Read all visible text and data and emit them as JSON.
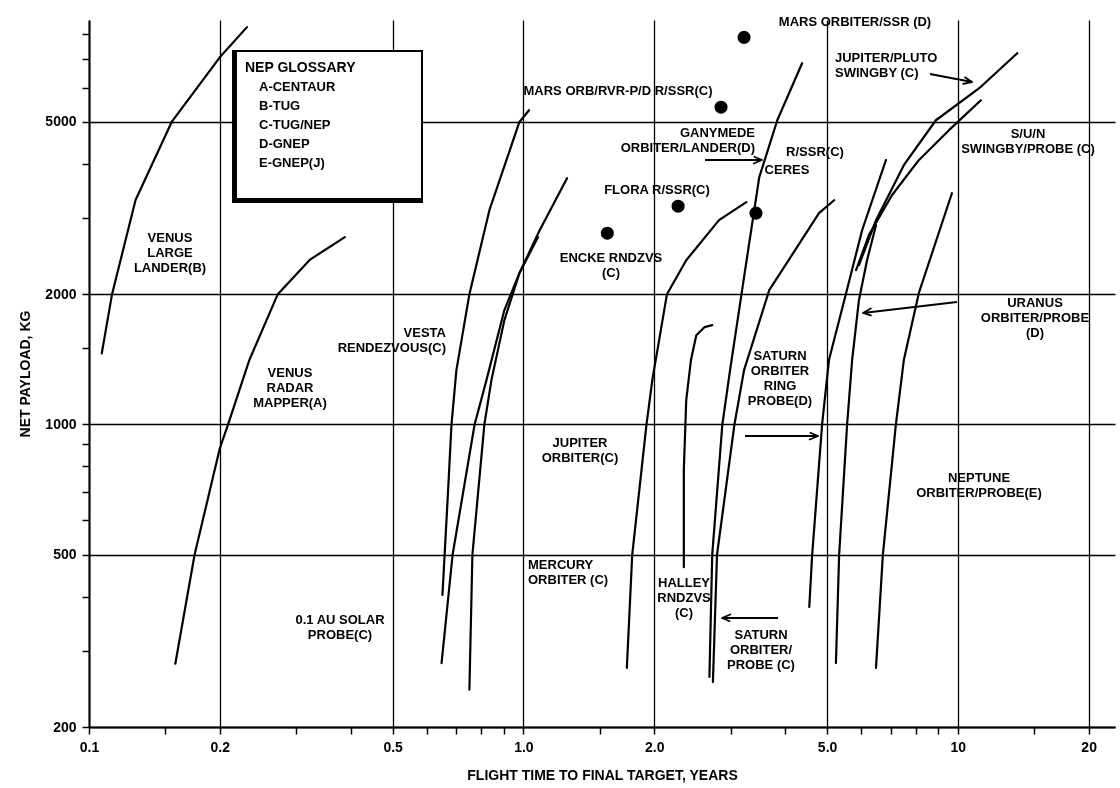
{
  "chart_data": {
    "type": "line",
    "xlabel": "FLIGHT TIME TO FINAL TARGET, YEARS",
    "ylabel": "NET PAYLOAD, KG",
    "log": "xy",
    "xlim": [
      0.1,
      23
    ],
    "ylim": [
      200,
      8600
    ],
    "xticks": [
      0.1,
      {
        "value": 0.15,
        "label": null
      },
      0.2,
      {
        "value": 0.3,
        "label": null
      },
      {
        "value": 0.4,
        "label": null
      },
      0.5,
      {
        "value": 0.6,
        "label": null
      },
      {
        "value": 0.7,
        "label": null
      },
      {
        "value": 0.8,
        "label": null
      },
      {
        "value": 0.9,
        "label": null
      },
      {
        "value": 1,
        "label": "1.0"
      },
      {
        "value": 1.5,
        "label": null
      },
      {
        "value": 2,
        "label": "2.0"
      },
      {
        "value": 3,
        "label": null
      },
      {
        "value": 4,
        "label": null
      },
      {
        "value": 5,
        "label": "5.0"
      },
      {
        "value": 6,
        "label": null
      },
      {
        "value": 7,
        "label": null
      },
      {
        "value": 8,
        "label": null
      },
      {
        "value": 9,
        "label": null
      },
      10,
      {
        "value": 15,
        "label": null
      },
      20
    ],
    "yticks": [
      200,
      {
        "value": 300,
        "label": null
      },
      {
        "value": 400,
        "label": null
      },
      500,
      {
        "value": 600,
        "label": null
      },
      {
        "value": 700,
        "label": null
      },
      {
        "value": 800,
        "label": null
      },
      {
        "value": 900,
        "label": null
      },
      1000,
      {
        "value": 1500,
        "label": null
      },
      2000,
      {
        "value": 3000,
        "label": null
      },
      {
        "value": 4000,
        "label": null
      },
      5000,
      {
        "value": 6000,
        "label": null
      },
      {
        "value": 7000,
        "label": null
      },
      {
        "value": 8000,
        "label": null
      }
    ],
    "grid": true,
    "series": [
      {
        "color": "#000000",
        "x": [
          0.107,
          0.113,
          0.128,
          0.155,
          0.2,
          0.231
        ],
        "values": [
          1460,
          2000,
          3300,
          5000,
          7050,
          8280
        ]
      },
      {
        "color": "#000000",
        "x": [
          0.158,
          0.175,
          0.2,
          0.209,
          0.234,
          0.272,
          0.322,
          0.388
        ],
        "values": [
          280,
          500,
          880,
          1000,
          1410,
          2000,
          2400,
          2710
        ]
      },
      {
        "color": "#000000",
        "x": [
          0.651,
          0.669,
          0.683,
          0.701,
          0.751,
          0.835,
          0.979,
          1.03
        ],
        "values": [
          404,
          669,
          1000,
          1335,
          2000,
          3126,
          5000,
          5322
        ]
      },
      {
        "color": "#000000",
        "x": [
          0.648,
          0.687,
          0.772,
          0.822,
          0.904,
          0.979,
          1.08
        ],
        "values": [
          281,
          500,
          1000,
          1266,
          1838,
          2237,
          2708
        ]
      },
      {
        "color": "#000000",
        "x": [
          0.751,
          0.763,
          0.813,
          0.844,
          0.904,
          0.979,
          1.09,
          1.26
        ],
        "values": [
          244,
          500,
          1000,
          1266,
          1742,
          2237,
          2810,
          3706
        ]
      },
      {
        "color": "#000000",
        "x": [
          1.73,
          1.78,
          1.92,
          1.98,
          2.14,
          2.37,
          2.82,
          3.26
        ],
        "values": [
          274,
          500,
          1000,
          1266,
          2000,
          2396,
          2965,
          3264
        ]
      },
      {
        "color": "#000000",
        "x": [
          2.34,
          2.34,
          2.37,
          2.43,
          2.5,
          2.61,
          2.72
        ],
        "values": [
          468,
          785,
          1138,
          1409,
          1608,
          1678,
          1696
        ]
      },
      {
        "color": "#000000",
        "x": [
          2.68,
          2.72,
          2.87,
          2.99,
          3.22,
          3.49,
          3.84,
          4.38
        ],
        "values": [
          261,
          500,
          1000,
          1335,
          2190,
          3726,
          5045,
          6832
        ]
      },
      {
        "color": "#000000",
        "x": [
          2.73,
          2.79,
          3.06,
          3.22,
          3.68,
          4.79,
          5.19
        ],
        "values": [
          254,
          500,
          1000,
          1335,
          2043,
          3078,
          3296
        ]
      },
      {
        "color": "#000000",
        "x": [
          4.55,
          4.62,
          4.87,
          5.05,
          5.53,
          6.02,
          6.83
        ],
        "values": [
          379,
          500,
          1000,
          1409,
          2011,
          2810,
          4080
        ]
      },
      {
        "color": "#000000",
        "x": [
          5.24,
          5.33,
          5.56,
          5.71,
          5.92,
          6.18,
          6.48
        ],
        "values": [
          281,
          500,
          1000,
          1409,
          1938,
          2396,
          2886
        ]
      },
      {
        "color": "#000000",
        "x": [
          5.92,
          6.48,
          7.51,
          8.9,
          11.2,
          13.7
        ],
        "values": [
          2334,
          2965,
          3972,
          5045,
          5983,
          7206
        ]
      },
      {
        "color": "#000000",
        "x": [
          5.83,
          6.24,
          7.05,
          8.13,
          9.54,
          11.3
        ],
        "values": [
          2272,
          2738,
          3386,
          4080,
          4786,
          5610
        ]
      },
      {
        "color": "#000000",
        "x": [
          6.48,
          6.72,
          7.2,
          7.51,
          8.13,
          9.69
        ],
        "values": [
          274,
          500,
          1000,
          1409,
          2011,
          3422
        ]
      },
      {
        "type": "scatter",
        "color": "#000000",
        "x": [
          1.56,
          2.27,
          2.85,
          3.22,
          3.43
        ],
        "values": [
          2766,
          3194,
          5408,
          7840,
          3078
        ]
      }
    ],
    "annotations": [
      "NEP GLOSSARY",
      "A-CENTAUR",
      "B-TUG",
      "C-TUG/NEP",
      "D-GNEP",
      "E-GNEP(J)",
      "VENUS\nLARGE\nLANDER(B)",
      "VENUS\nRADAR\nMAPPER(A)",
      "VESTA\nRENDEZVOUS(C)",
      "0.1 AU SOLAR\nPROBE(C)",
      "MERCURY\nORBITER (C)",
      "JUPITER\nORBITER(C)",
      "HALLEY\nRNDZVS\n(C)",
      "SATURN\nORBITER/\nPROBE (C)",
      "SATURN\nORBITER\nRING\nPROBE(D)",
      "ENCKE RNDZVS\n(C)",
      "FLORA R/SSR(C)",
      "GANYMEDE\nORBITER/LANDER(D)",
      "MARS ORB/RVR-P/D R/SSR(C)",
      "MARS ORBITER/SSR (D)",
      "R/SSR(C)",
      "CERES",
      "JUPITER/PLUTO\nSWINGBY (C)",
      "S/U/N\nSWINGBY/PROBE (C)",
      "URANUS\nORBITER/PROBE\n(D)",
      "NEPTUNE\nORBITER/PROBE(E)"
    ]
  }
}
